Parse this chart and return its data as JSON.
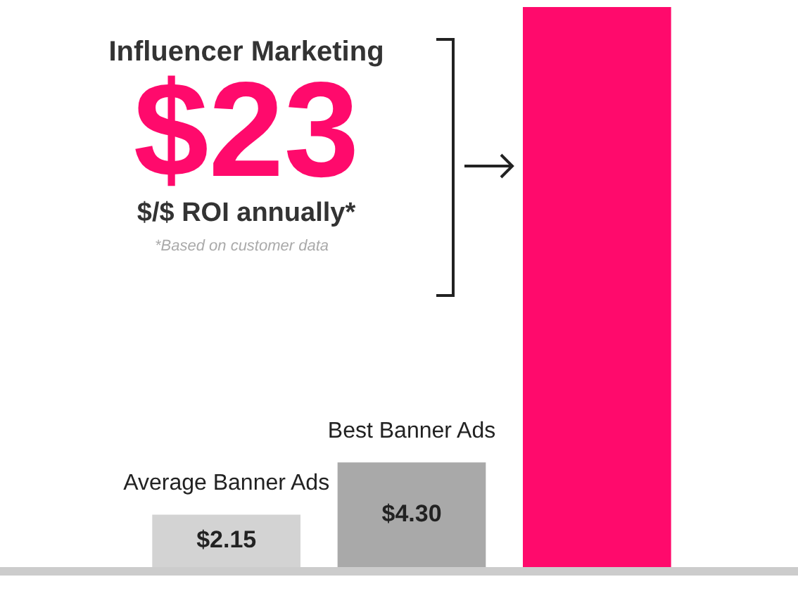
{
  "chart_data": {
    "type": "bar",
    "categories": [
      "Average Banner Ads",
      "Best Banner Ads",
      null
    ],
    "values": [
      2.15,
      4.3,
      23
    ],
    "colors": [
      "#d3d3d3",
      "#a9a9a9",
      "#ff0a6c"
    ],
    "value_labels": [
      "$2.15",
      "$4.30",
      "$23"
    ],
    "annotations": [
      "Influencer Marketing",
      "$/$ ROI annually*",
      "*Based on customer data"
    ]
  }
}
